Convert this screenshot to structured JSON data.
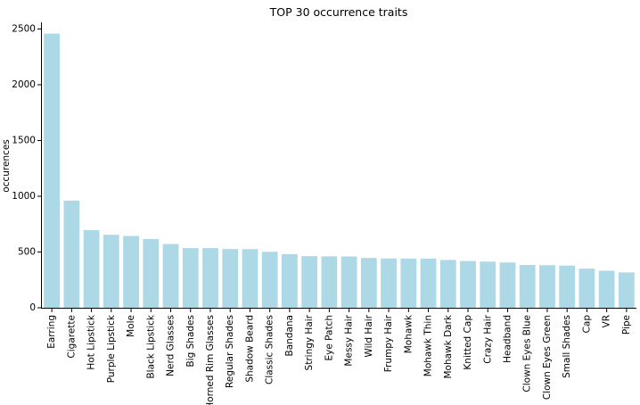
{
  "chart_data": {
    "type": "bar",
    "title": "TOP 30 occurrence traits",
    "xlabel": "",
    "ylabel": "occurences",
    "ylim": [
      0,
      2560
    ],
    "yticks": [
      0,
      500,
      1000,
      1500,
      2000,
      2500
    ],
    "grid": false,
    "bar_color": "#add8e6",
    "categories": [
      "Earring",
      "Cigarette",
      "Hot Lipstick",
      "Purple Lipstick",
      "Mole",
      "Black Lipstick",
      "Nerd Glasses",
      "Big Shades",
      "Horned Rim Glasses",
      "Regular Shades",
      "Shadow Beard",
      "Classic Shades",
      "Bandana",
      "Stringy Hair",
      "Eye Patch",
      "Messy Hair",
      "Wild Hair",
      "Frumpy Hair",
      "Mohawk",
      "Mohawk Thin",
      "Mohawk Dark",
      "Knitted Cap",
      "Crazy Hair",
      "Headband",
      "Clown Eyes Blue",
      "Clown Eyes Green",
      "Small Shades",
      "Cap",
      "VR",
      "Pipe"
    ],
    "values": [
      2459,
      961,
      696,
      655,
      644,
      617,
      572,
      535,
      535,
      527,
      526,
      502,
      481,
      463,
      461,
      460,
      447,
      442,
      441,
      441,
      429,
      419,
      414,
      406,
      384,
      382,
      378,
      351,
      332,
      317
    ]
  }
}
